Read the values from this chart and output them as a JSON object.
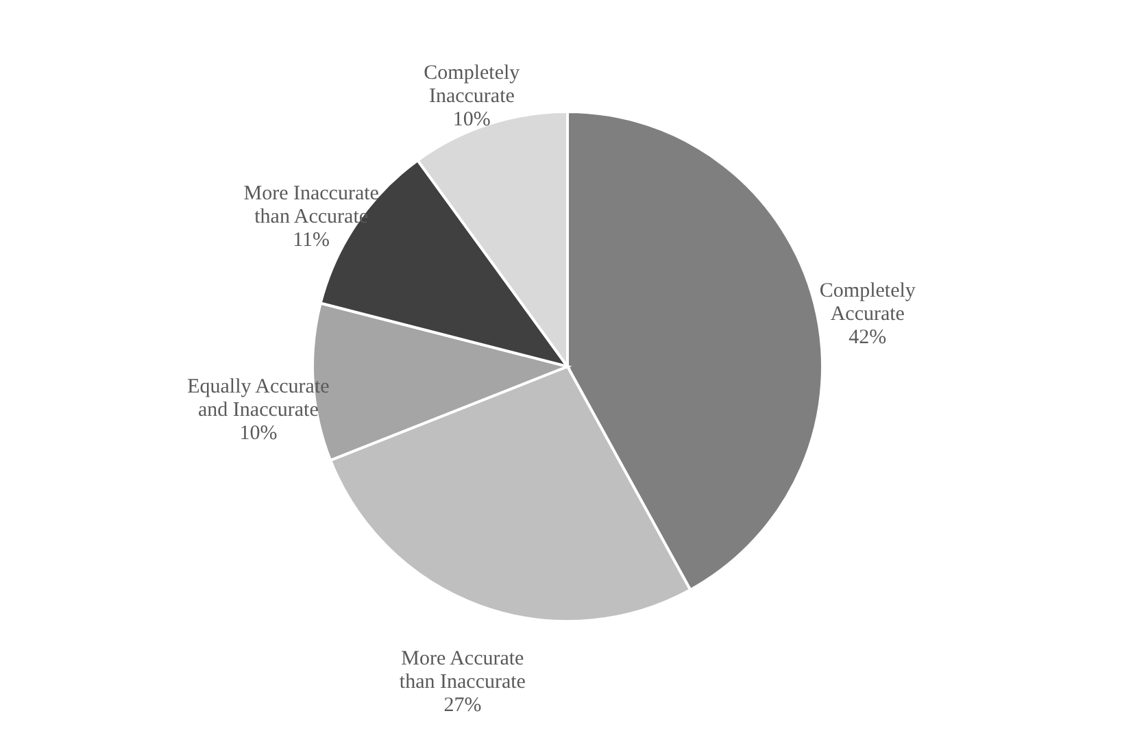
{
  "chart_data": {
    "type": "pie",
    "categories": [
      "Completely Accurate",
      "More Accurate than Inaccurate",
      "Equally Accurate and Inaccurate",
      "More Inaccurate than Accurate",
      "Completely Inaccurate"
    ],
    "values": [
      42,
      27,
      10,
      11,
      10
    ],
    "value_labels": [
      "42%",
      "27%",
      "10%",
      "11%",
      "10%"
    ],
    "colors": [
      "#7f7f7f",
      "#bfbfbf",
      "#a5a5a5",
      "#404040",
      "#d9d9d9"
    ]
  }
}
